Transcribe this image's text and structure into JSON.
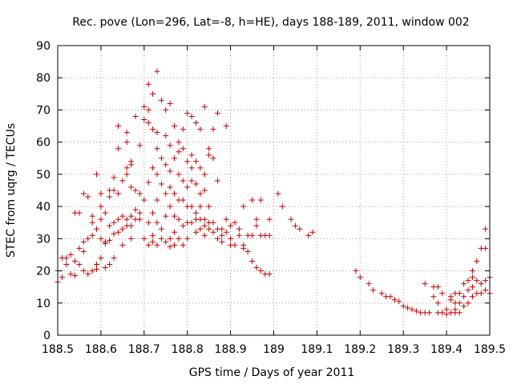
{
  "chart_data": {
    "type": "scatter",
    "title": "Rec. pove (Lon=296, Lat=-8, h=HE), days 188-189, 2011, window 002",
    "xlabel": "GPS time / Days of year 2011",
    "ylabel": "STEC from uqrg / TECUs",
    "xlim": [
      188.5,
      189.5
    ],
    "ylim": [
      0,
      90
    ],
    "xticks": [
      188.5,
      188.6,
      188.7,
      188.8,
      188.9,
      189.0,
      189.1,
      189.2,
      189.3,
      189.4,
      189.5
    ],
    "xtick_labels": [
      "188.5",
      "188.6",
      "188.7",
      "188.8",
      "188.9",
      "189",
      "189.1",
      "189.2",
      "189.3",
      "189.4",
      "189.5"
    ],
    "yticks": [
      0,
      10,
      20,
      30,
      40,
      50,
      60,
      70,
      80,
      90
    ],
    "ytick_labels": [
      "0",
      "10",
      "20",
      "30",
      "40",
      "50",
      "60",
      "70",
      "80",
      "90"
    ],
    "grid": true,
    "marker": "+",
    "color": "#cc0000",
    "series": [
      {
        "name": "STEC",
        "points": [
          [
            188.5,
            16.5
          ],
          [
            188.5,
            20
          ],
          [
            188.51,
            24
          ],
          [
            188.51,
            18
          ],
          [
            188.52,
            22
          ],
          [
            188.52,
            24
          ],
          [
            188.53,
            19
          ],
          [
            188.53,
            25
          ],
          [
            188.54,
            18.5
          ],
          [
            188.54,
            23
          ],
          [
            188.54,
            38
          ],
          [
            188.55,
            22
          ],
          [
            188.55,
            27
          ],
          [
            188.55,
            38
          ],
          [
            188.56,
            44
          ],
          [
            188.56,
            29
          ],
          [
            188.56,
            20
          ],
          [
            188.56,
            26
          ],
          [
            188.57,
            19
          ],
          [
            188.57,
            30
          ],
          [
            188.57,
            43
          ],
          [
            188.58,
            31
          ],
          [
            188.58,
            35
          ],
          [
            188.58,
            37
          ],
          [
            188.58,
            20
          ],
          [
            188.59,
            50
          ],
          [
            188.59,
            20.5
          ],
          [
            188.59,
            22
          ],
          [
            188.59,
            33
          ],
          [
            188.6,
            44
          ],
          [
            188.6,
            40
          ],
          [
            188.6,
            36
          ],
          [
            188.6,
            30
          ],
          [
            188.6,
            24
          ],
          [
            188.61,
            21
          ],
          [
            188.61,
            29
          ],
          [
            188.61,
            38
          ],
          [
            188.61,
            28.5
          ],
          [
            188.62,
            45
          ],
          [
            188.62,
            43
          ],
          [
            188.62,
            34
          ],
          [
            188.62,
            22
          ],
          [
            188.62,
            29.5
          ],
          [
            188.63,
            49
          ],
          [
            188.63,
            45
          ],
          [
            188.63,
            35
          ],
          [
            188.63,
            24
          ],
          [
            188.63,
            31.5
          ],
          [
            188.64,
            65
          ],
          [
            188.64,
            58
          ],
          [
            188.64,
            44
          ],
          [
            188.64,
            36
          ],
          [
            188.64,
            32
          ],
          [
            188.65,
            48
          ],
          [
            188.65,
            37
          ],
          [
            188.65,
            33
          ],
          [
            188.65,
            28
          ],
          [
            188.66,
            60
          ],
          [
            188.66,
            52
          ],
          [
            188.66,
            50
          ],
          [
            188.66,
            63
          ],
          [
            188.66,
            36
          ],
          [
            188.66,
            34
          ],
          [
            188.67,
            54
          ],
          [
            188.67,
            53
          ],
          [
            188.67,
            46
          ],
          [
            188.67,
            37
          ],
          [
            188.67,
            34
          ],
          [
            188.67,
            30
          ],
          [
            188.68,
            68
          ],
          [
            188.68,
            45
          ],
          [
            188.68,
            39
          ],
          [
            188.68,
            36
          ],
          [
            188.69,
            59
          ],
          [
            188.69,
            44
          ],
          [
            188.69,
            38
          ],
          [
            188.69,
            36
          ],
          [
            188.7,
            71
          ],
          [
            188.7,
            67
          ],
          [
            188.7,
            42
          ],
          [
            188.7,
            30
          ],
          [
            188.71,
            78
          ],
          [
            188.71,
            70
          ],
          [
            188.71,
            66
          ],
          [
            188.71,
            47.5
          ],
          [
            188.71,
            35
          ],
          [
            188.71,
            28
          ],
          [
            188.72,
            75
          ],
          [
            188.72,
            64
          ],
          [
            188.72,
            52
          ],
          [
            188.72,
            38
          ],
          [
            188.72,
            31
          ],
          [
            188.72,
            29
          ],
          [
            188.73,
            82
          ],
          [
            188.73,
            63
          ],
          [
            188.73,
            58
          ],
          [
            188.73,
            50
          ],
          [
            188.73,
            42
          ],
          [
            188.73,
            35
          ],
          [
            188.73,
            28
          ],
          [
            188.74,
            73
          ],
          [
            188.74,
            55
          ],
          [
            188.74,
            47
          ],
          [
            188.74,
            33
          ],
          [
            188.74,
            30
          ],
          [
            188.75,
            70
          ],
          [
            188.75,
            62
          ],
          [
            188.75,
            53
          ],
          [
            188.75,
            44
          ],
          [
            188.75,
            37
          ],
          [
            188.75,
            29
          ],
          [
            188.76,
            72
          ],
          [
            188.76,
            59
          ],
          [
            188.76,
            51
          ],
          [
            188.76,
            46
          ],
          [
            188.76,
            40
          ],
          [
            188.76,
            30
          ],
          [
            188.76,
            27.5
          ],
          [
            188.77,
            65
          ],
          [
            188.77,
            55
          ],
          [
            188.77,
            44
          ],
          [
            188.77,
            37
          ],
          [
            188.77,
            32
          ],
          [
            188.77,
            28
          ],
          [
            188.78,
            60
          ],
          [
            188.78,
            57
          ],
          [
            188.78,
            50
          ],
          [
            188.78,
            42
          ],
          [
            188.78,
            36
          ],
          [
            188.78,
            30
          ],
          [
            188.79,
            64
          ],
          [
            188.79,
            58
          ],
          [
            188.79,
            48
          ],
          [
            188.79,
            42
          ],
          [
            188.79,
            34
          ],
          [
            188.79,
            28
          ],
          [
            188.8,
            69
          ],
          [
            188.8,
            54
          ],
          [
            188.8,
            46
          ],
          [
            188.8,
            40
          ],
          [
            188.8,
            35
          ],
          [
            188.8,
            30
          ],
          [
            188.81,
            68
          ],
          [
            188.81,
            56
          ],
          [
            188.81,
            52
          ],
          [
            188.81,
            48
          ],
          [
            188.81,
            40
          ],
          [
            188.81,
            35
          ],
          [
            188.82,
            66
          ],
          [
            188.82,
            54
          ],
          [
            188.82,
            47
          ],
          [
            188.82,
            38
          ],
          [
            188.82,
            36
          ],
          [
            188.82,
            32
          ],
          [
            188.83,
            64
          ],
          [
            188.83,
            52
          ],
          [
            188.83,
            44
          ],
          [
            188.83,
            40
          ],
          [
            188.83,
            36
          ],
          [
            188.83,
            33
          ],
          [
            188.84,
            71
          ],
          [
            188.84,
            50
          ],
          [
            188.84,
            45
          ],
          [
            188.84,
            36
          ],
          [
            188.84,
            34
          ],
          [
            188.84,
            31
          ],
          [
            188.85,
            58
          ],
          [
            188.85,
            56
          ],
          [
            188.85,
            40
          ],
          [
            188.85,
            35
          ],
          [
            188.85,
            33
          ],
          [
            188.86,
            64
          ],
          [
            188.86,
            55
          ],
          [
            188.86,
            35
          ],
          [
            188.86,
            32
          ],
          [
            188.87,
            69
          ],
          [
            188.87,
            48
          ],
          [
            188.87,
            33
          ],
          [
            188.87,
            30
          ],
          [
            188.88,
            33
          ],
          [
            188.88,
            31
          ],
          [
            188.88,
            29
          ],
          [
            188.89,
            65
          ],
          [
            188.89,
            36
          ],
          [
            188.89,
            32
          ],
          [
            188.9,
            34
          ],
          [
            188.9,
            30
          ],
          [
            188.9,
            28
          ],
          [
            188.91,
            35
          ],
          [
            188.91,
            28
          ],
          [
            188.92,
            33
          ],
          [
            188.92,
            31
          ],
          [
            188.93,
            28
          ],
          [
            188.93,
            27
          ],
          [
            188.93,
            40
          ],
          [
            188.94,
            31
          ],
          [
            188.94,
            26
          ],
          [
            188.95,
            42
          ],
          [
            188.95,
            31
          ],
          [
            188.95,
            23
          ],
          [
            188.96,
            36
          ],
          [
            188.96,
            34
          ],
          [
            188.96,
            21
          ],
          [
            188.97,
            42
          ],
          [
            188.97,
            31
          ],
          [
            188.97,
            20
          ],
          [
            188.98,
            31
          ],
          [
            188.98,
            19
          ],
          [
            188.99,
            36
          ],
          [
            188.99,
            31
          ],
          [
            188.99,
            19
          ],
          [
            189.01,
            44
          ],
          [
            189.02,
            40
          ],
          [
            189.04,
            36
          ],
          [
            189.05,
            34
          ],
          [
            189.06,
            33
          ],
          [
            189.08,
            31
          ],
          [
            189.09,
            32
          ],
          [
            189.19,
            20
          ],
          [
            189.2,
            18
          ],
          [
            189.22,
            16
          ],
          [
            189.23,
            14
          ],
          [
            189.25,
            13
          ],
          [
            189.26,
            12
          ],
          [
            189.27,
            12
          ],
          [
            189.28,
            11
          ],
          [
            189.29,
            10.5
          ],
          [
            189.3,
            9
          ],
          [
            189.31,
            8.5
          ],
          [
            189.32,
            8
          ],
          [
            189.33,
            7.5
          ],
          [
            189.34,
            7
          ],
          [
            189.35,
            16
          ],
          [
            189.35,
            7
          ],
          [
            189.36,
            7
          ],
          [
            189.37,
            15
          ],
          [
            189.37,
            12
          ],
          [
            189.38,
            15
          ],
          [
            189.38,
            10
          ],
          [
            189.38,
            7
          ],
          [
            189.39,
            13
          ],
          [
            189.39,
            7
          ],
          [
            189.4,
            8
          ],
          [
            189.4,
            6.5
          ],
          [
            189.41,
            12
          ],
          [
            189.41,
            11
          ],
          [
            189.41,
            7
          ],
          [
            189.42,
            13
          ],
          [
            189.42,
            10
          ],
          [
            189.42,
            8
          ],
          [
            189.42,
            7
          ],
          [
            189.43,
            13
          ],
          [
            189.43,
            10
          ],
          [
            189.43,
            7
          ],
          [
            189.44,
            16
          ],
          [
            189.44,
            12
          ],
          [
            189.44,
            9
          ],
          [
            189.45,
            17
          ],
          [
            189.45,
            14
          ],
          [
            189.45,
            10
          ],
          [
            189.46,
            20
          ],
          [
            189.46,
            18
          ],
          [
            189.46,
            15
          ],
          [
            189.46,
            12
          ],
          [
            189.47,
            23
          ],
          [
            189.47,
            17
          ],
          [
            189.47,
            13
          ],
          [
            189.48,
            27
          ],
          [
            189.48,
            16
          ],
          [
            189.48,
            13
          ],
          [
            189.49,
            33
          ],
          [
            189.49,
            27
          ],
          [
            189.49,
            17
          ],
          [
            189.49,
            14
          ],
          [
            189.5,
            18
          ],
          [
            189.5,
            13
          ]
        ]
      }
    ]
  }
}
